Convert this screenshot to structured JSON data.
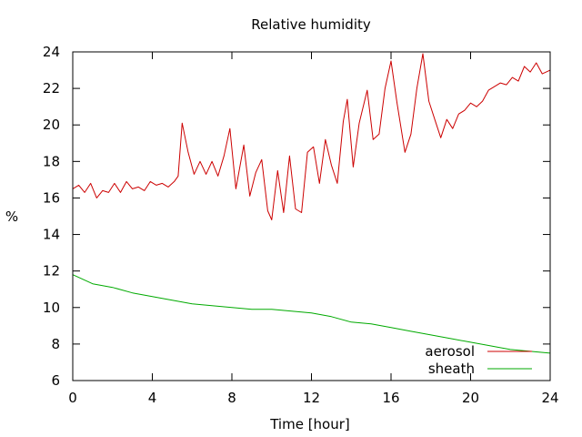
{
  "chart_data": {
    "type": "line",
    "title": "Relative humidity",
    "xlabel": "Time [hour]",
    "ylabel": "%",
    "xlim": [
      0,
      24
    ],
    "ylim": [
      6,
      24
    ],
    "xticks": [
      0,
      4,
      8,
      12,
      16,
      20,
      24
    ],
    "yticks": [
      6,
      8,
      10,
      12,
      14,
      16,
      18,
      20,
      22,
      24
    ],
    "grid": false,
    "legend": "bottom-right",
    "series": [
      {
        "name": "aerosol",
        "color": "#cc0000",
        "points": [
          [
            0.0,
            16.5
          ],
          [
            0.3,
            16.7
          ],
          [
            0.6,
            16.3
          ],
          [
            0.9,
            16.8
          ],
          [
            1.2,
            16.0
          ],
          [
            1.5,
            16.4
          ],
          [
            1.8,
            16.3
          ],
          [
            2.1,
            16.8
          ],
          [
            2.4,
            16.3
          ],
          [
            2.7,
            16.9
          ],
          [
            3.0,
            16.5
          ],
          [
            3.3,
            16.6
          ],
          [
            3.6,
            16.4
          ],
          [
            3.9,
            16.9
          ],
          [
            4.2,
            16.7
          ],
          [
            4.5,
            16.8
          ],
          [
            4.8,
            16.6
          ],
          [
            5.1,
            16.9
          ],
          [
            5.3,
            17.2
          ],
          [
            5.5,
            20.1
          ],
          [
            5.8,
            18.5
          ],
          [
            6.1,
            17.3
          ],
          [
            6.4,
            18.0
          ],
          [
            6.7,
            17.3
          ],
          [
            7.0,
            18.0
          ],
          [
            7.3,
            17.2
          ],
          [
            7.6,
            18.3
          ],
          [
            7.9,
            19.8
          ],
          [
            8.2,
            16.5
          ],
          [
            8.6,
            18.9
          ],
          [
            8.9,
            16.1
          ],
          [
            9.2,
            17.4
          ],
          [
            9.5,
            18.1
          ],
          [
            9.8,
            15.3
          ],
          [
            10.0,
            14.8
          ],
          [
            10.3,
            17.5
          ],
          [
            10.6,
            15.2
          ],
          [
            10.9,
            18.3
          ],
          [
            11.2,
            15.4
          ],
          [
            11.5,
            15.2
          ],
          [
            11.8,
            18.5
          ],
          [
            12.1,
            18.8
          ],
          [
            12.4,
            16.8
          ],
          [
            12.7,
            19.2
          ],
          [
            13.0,
            17.8
          ],
          [
            13.3,
            16.8
          ],
          [
            13.6,
            20.2
          ],
          [
            13.8,
            21.4
          ],
          [
            14.1,
            17.7
          ],
          [
            14.4,
            20.1
          ],
          [
            14.8,
            21.9
          ],
          [
            15.1,
            19.2
          ],
          [
            15.4,
            19.5
          ],
          [
            15.7,
            22.0
          ],
          [
            16.0,
            23.5
          ],
          [
            16.3,
            21.2
          ],
          [
            16.7,
            18.5
          ],
          [
            17.0,
            19.5
          ],
          [
            17.3,
            22.0
          ],
          [
            17.6,
            23.9
          ],
          [
            17.9,
            21.3
          ],
          [
            18.2,
            20.3
          ],
          [
            18.5,
            19.3
          ],
          [
            18.8,
            20.3
          ],
          [
            19.1,
            19.8
          ],
          [
            19.4,
            20.6
          ],
          [
            19.7,
            20.8
          ],
          [
            20.0,
            21.2
          ],
          [
            20.3,
            21.0
          ],
          [
            20.6,
            21.3
          ],
          [
            20.9,
            21.9
          ],
          [
            21.2,
            22.1
          ],
          [
            21.5,
            22.3
          ],
          [
            21.8,
            22.2
          ],
          [
            22.1,
            22.6
          ],
          [
            22.4,
            22.4
          ],
          [
            22.7,
            23.2
          ],
          [
            23.0,
            22.9
          ],
          [
            23.3,
            23.4
          ],
          [
            23.6,
            22.8
          ],
          [
            24.0,
            23.0
          ]
        ]
      },
      {
        "name": "sheath",
        "color": "#00aa00",
        "points": [
          [
            0.0,
            11.8
          ],
          [
            1.0,
            11.3
          ],
          [
            2.0,
            11.1
          ],
          [
            3.0,
            10.8
          ],
          [
            4.0,
            10.6
          ],
          [
            5.0,
            10.4
          ],
          [
            6.0,
            10.2
          ],
          [
            7.0,
            10.1
          ],
          [
            8.0,
            10.0
          ],
          [
            9.0,
            9.9
          ],
          [
            10.0,
            9.9
          ],
          [
            11.0,
            9.8
          ],
          [
            12.0,
            9.7
          ],
          [
            13.0,
            9.5
          ],
          [
            14.0,
            9.2
          ],
          [
            15.0,
            9.1
          ],
          [
            16.0,
            8.9
          ],
          [
            17.0,
            8.7
          ],
          [
            18.0,
            8.5
          ],
          [
            19.0,
            8.3
          ],
          [
            20.0,
            8.1
          ],
          [
            21.0,
            7.9
          ],
          [
            22.0,
            7.7
          ],
          [
            23.0,
            7.6
          ],
          [
            24.0,
            7.5
          ]
        ]
      }
    ]
  }
}
